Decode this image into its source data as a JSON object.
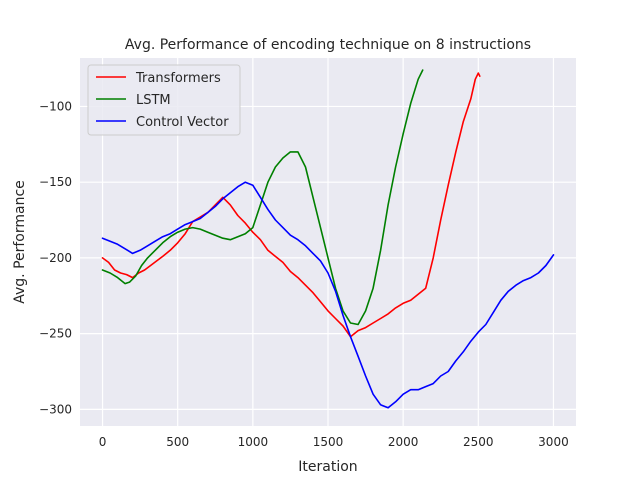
{
  "chart_data": {
    "type": "line",
    "title": "Avg. Performance of encoding technique on 8 instructions",
    "xlabel": "Iteration",
    "ylabel": "Avg. Performance",
    "xlim": [
      -150,
      3150
    ],
    "ylim": [
      -311,
      -68
    ],
    "xticks": [
      0,
      500,
      1000,
      1500,
      2000,
      2500,
      3000
    ],
    "yticks": [
      -300,
      -250,
      -200,
      -150,
      -100
    ],
    "grid": true,
    "legend": "top-left",
    "series": [
      {
        "name": "Transformers",
        "color": "#ff0000",
        "points": [
          [
            0,
            -200
          ],
          [
            40,
            -203
          ],
          [
            80,
            -208
          ],
          [
            120,
            -210
          ],
          [
            160,
            -211
          ],
          [
            200,
            -213
          ],
          [
            240,
            -210
          ],
          [
            280,
            -208
          ],
          [
            320,
            -205
          ],
          [
            360,
            -202
          ],
          [
            400,
            -199
          ],
          [
            450,
            -195
          ],
          [
            500,
            -190
          ],
          [
            550,
            -184
          ],
          [
            600,
            -176
          ],
          [
            650,
            -173
          ],
          [
            700,
            -170
          ],
          [
            750,
            -165
          ],
          [
            800,
            -160
          ],
          [
            850,
            -165
          ],
          [
            900,
            -172
          ],
          [
            950,
            -177
          ],
          [
            1000,
            -183
          ],
          [
            1050,
            -188
          ],
          [
            1100,
            -195
          ],
          [
            1150,
            -199
          ],
          [
            1200,
            -203
          ],
          [
            1250,
            -209
          ],
          [
            1300,
            -213
          ],
          [
            1350,
            -218
          ],
          [
            1400,
            -223
          ],
          [
            1450,
            -229
          ],
          [
            1500,
            -235
          ],
          [
            1550,
            -240
          ],
          [
            1600,
            -245
          ],
          [
            1650,
            -252
          ],
          [
            1700,
            -248
          ],
          [
            1750,
            -246
          ],
          [
            1800,
            -243
          ],
          [
            1850,
            -240
          ],
          [
            1900,
            -237
          ],
          [
            1950,
            -233
          ],
          [
            2000,
            -230
          ],
          [
            2050,
            -228
          ],
          [
            2100,
            -224
          ],
          [
            2150,
            -220
          ],
          [
            2200,
            -200
          ],
          [
            2250,
            -175
          ],
          [
            2300,
            -152
          ],
          [
            2350,
            -130
          ],
          [
            2400,
            -110
          ],
          [
            2450,
            -95
          ],
          [
            2480,
            -82
          ],
          [
            2500,
            -78
          ],
          [
            2510,
            -80
          ]
        ]
      },
      {
        "name": "LSTM",
        "color": "#008000",
        "points": [
          [
            0,
            -208
          ],
          [
            50,
            -210
          ],
          [
            100,
            -213
          ],
          [
            150,
            -217
          ],
          [
            180,
            -216
          ],
          [
            220,
            -212
          ],
          [
            260,
            -205
          ],
          [
            300,
            -200
          ],
          [
            350,
            -195
          ],
          [
            400,
            -190
          ],
          [
            450,
            -186
          ],
          [
            500,
            -183
          ],
          [
            550,
            -181
          ],
          [
            600,
            -180
          ],
          [
            650,
            -181
          ],
          [
            700,
            -183
          ],
          [
            750,
            -185
          ],
          [
            800,
            -187
          ],
          [
            850,
            -188
          ],
          [
            900,
            -186
          ],
          [
            950,
            -184
          ],
          [
            1000,
            -180
          ],
          [
            1050,
            -165
          ],
          [
            1100,
            -150
          ],
          [
            1150,
            -140
          ],
          [
            1200,
            -134
          ],
          [
            1250,
            -130
          ],
          [
            1300,
            -130
          ],
          [
            1350,
            -140
          ],
          [
            1400,
            -160
          ],
          [
            1450,
            -180
          ],
          [
            1500,
            -200
          ],
          [
            1550,
            -220
          ],
          [
            1600,
            -235
          ],
          [
            1650,
            -243
          ],
          [
            1700,
            -244
          ],
          [
            1750,
            -235
          ],
          [
            1800,
            -220
          ],
          [
            1850,
            -195
          ],
          [
            1900,
            -165
          ],
          [
            1950,
            -140
          ],
          [
            2000,
            -118
          ],
          [
            2050,
            -98
          ],
          [
            2100,
            -82
          ],
          [
            2130,
            -76
          ]
        ]
      },
      {
        "name": "Control Vector",
        "color": "#0000ff",
        "points": [
          [
            0,
            -187
          ],
          [
            50,
            -189
          ],
          [
            100,
            -191
          ],
          [
            150,
            -194
          ],
          [
            200,
            -197
          ],
          [
            250,
            -195
          ],
          [
            300,
            -192
          ],
          [
            350,
            -189
          ],
          [
            400,
            -186
          ],
          [
            450,
            -184
          ],
          [
            500,
            -181
          ],
          [
            550,
            -178
          ],
          [
            600,
            -176
          ],
          [
            650,
            -174
          ],
          [
            700,
            -170
          ],
          [
            750,
            -166
          ],
          [
            800,
            -161
          ],
          [
            850,
            -157
          ],
          [
            900,
            -153
          ],
          [
            950,
            -150
          ],
          [
            1000,
            -152
          ],
          [
            1050,
            -160
          ],
          [
            1100,
            -168
          ],
          [
            1150,
            -175
          ],
          [
            1200,
            -180
          ],
          [
            1250,
            -185
          ],
          [
            1300,
            -188
          ],
          [
            1350,
            -192
          ],
          [
            1400,
            -197
          ],
          [
            1450,
            -202
          ],
          [
            1500,
            -210
          ],
          [
            1550,
            -222
          ],
          [
            1600,
            -238
          ],
          [
            1650,
            -252
          ],
          [
            1700,
            -265
          ],
          [
            1750,
            -278
          ],
          [
            1800,
            -290
          ],
          [
            1850,
            -297
          ],
          [
            1900,
            -299
          ],
          [
            1950,
            -295
          ],
          [
            2000,
            -290
          ],
          [
            2050,
            -287
          ],
          [
            2100,
            -287
          ],
          [
            2150,
            -285
          ],
          [
            2200,
            -283
          ],
          [
            2250,
            -278
          ],
          [
            2300,
            -275
          ],
          [
            2350,
            -268
          ],
          [
            2400,
            -262
          ],
          [
            2450,
            -255
          ],
          [
            2500,
            -249
          ],
          [
            2550,
            -244
          ],
          [
            2600,
            -236
          ],
          [
            2650,
            -228
          ],
          [
            2700,
            -222
          ],
          [
            2750,
            -218
          ],
          [
            2800,
            -215
          ],
          [
            2850,
            -213
          ],
          [
            2900,
            -210
          ],
          [
            2950,
            -205
          ],
          [
            3000,
            -198
          ]
        ]
      }
    ]
  }
}
